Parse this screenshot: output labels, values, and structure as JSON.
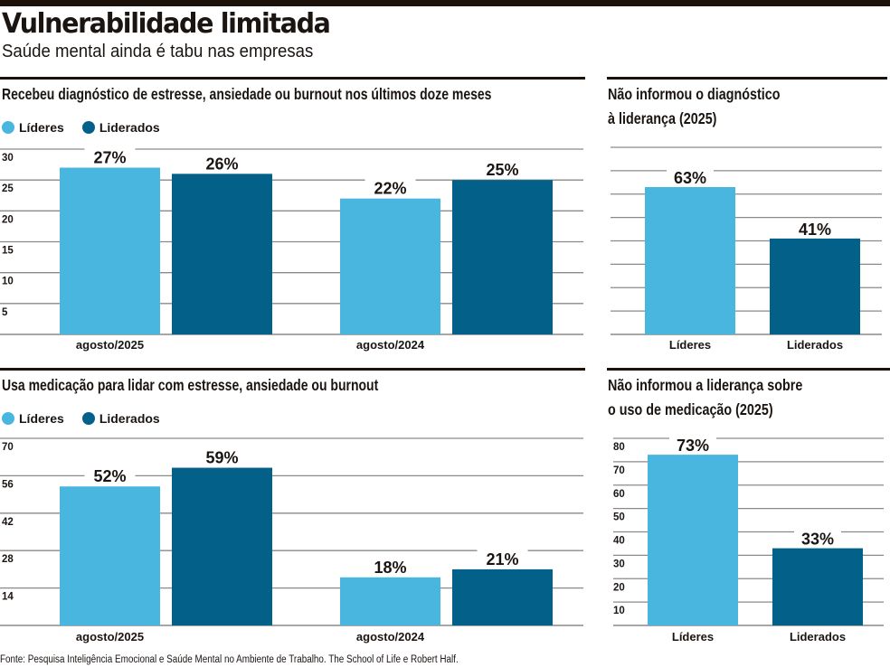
{
  "header": {
    "title": "Vulnerabilidade limitada",
    "subtitle": "Saúde mental ainda é tabu nas empresas"
  },
  "legend": {
    "items": [
      {
        "label": "Líderes",
        "color": "#48b6df"
      },
      {
        "label": "Liderados",
        "color": "#036189"
      }
    ]
  },
  "colors": {
    "lideres": "#48b6df",
    "liderados": "#036189",
    "rule": "#1d120a",
    "grid": "#8a8a8a"
  },
  "footer": {
    "source": "Fonte: Pesquisa Inteligência Emocional e Saúde Mental no Ambiente de Trabalho. The School of Life e Robert Half."
  },
  "chart_data": [
    {
      "id": "diagnostico",
      "type": "bar",
      "title": "Recebeu diagnóstico de estresse, ansiedade ou burnout nos últimos doze meses",
      "xlabel": "",
      "ylabel": "",
      "categories": [
        "agosto/2025",
        "agosto/2024"
      ],
      "series": [
        {
          "name": "Líderes",
          "values": [
            27,
            22
          ],
          "labels": [
            "27%",
            "22%"
          ]
        },
        {
          "name": "Liderados",
          "values": [
            26,
            25
          ],
          "labels": [
            "26%",
            "25%"
          ]
        }
      ],
      "ylim": [
        0,
        30
      ],
      "yticks": [
        5,
        10,
        15,
        20,
        25,
        30
      ],
      "ytick_labels": [
        "5",
        "10",
        "15",
        "20",
        "25",
        "30"
      ],
      "grid": true,
      "legend": "top-left"
    },
    {
      "id": "nao-informou-diagnostico",
      "type": "bar",
      "title": "Não informou o diagnóstico à liderança (2025)",
      "title_lines": [
        "Não informou o diagnóstico",
        "à liderança (2025)"
      ],
      "xlabel": "",
      "ylabel": "",
      "categories": [
        "Líderes",
        "Liderados"
      ],
      "values": [
        63,
        41
      ],
      "labels": [
        "63%",
        "41%"
      ],
      "ylim": [
        0,
        80
      ],
      "yticks": [
        10,
        20,
        30,
        40,
        50,
        60,
        70,
        80
      ],
      "ytick_labels": [],
      "grid": true,
      "legend": "none"
    },
    {
      "id": "medicacao",
      "type": "bar",
      "title": "Usa medicação para lidar com estresse, ansiedade ou burnout",
      "xlabel": "",
      "ylabel": "",
      "categories": [
        "agosto/2025",
        "agosto/2024"
      ],
      "series": [
        {
          "name": "Líderes",
          "values": [
            52,
            18
          ],
          "labels": [
            "52%",
            "18%"
          ]
        },
        {
          "name": "Liderados",
          "values": [
            59,
            21
          ],
          "labels": [
            "59%",
            "21%"
          ]
        }
      ],
      "ylim": [
        0,
        70
      ],
      "yticks": [
        14,
        28,
        42,
        56,
        70
      ],
      "ytick_labels": [
        "14",
        "28",
        "42",
        "56",
        "70"
      ],
      "grid": true,
      "legend": "top-left"
    },
    {
      "id": "nao-informou-medicacao",
      "type": "bar",
      "title": "Não informou a liderança sobre o uso de medicação (2025)",
      "title_lines": [
        "Não informou a liderança sobre",
        "o uso de medicação (2025)"
      ],
      "xlabel": "",
      "ylabel": "",
      "categories": [
        "Líderes",
        "Liderados"
      ],
      "values": [
        73,
        33
      ],
      "labels": [
        "73%",
        "33%"
      ],
      "ylim": [
        0,
        80
      ],
      "yticks": [
        10,
        20,
        30,
        40,
        50,
        60,
        70,
        80
      ],
      "ytick_labels": [
        "10",
        "20",
        "30",
        "40",
        "50",
        "60",
        "70",
        "80"
      ],
      "grid": true,
      "legend": "none"
    }
  ]
}
